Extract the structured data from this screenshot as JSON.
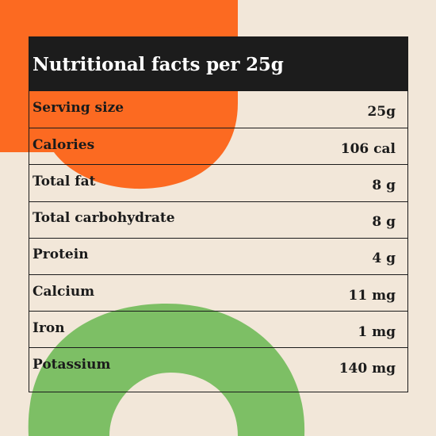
{
  "colors": {
    "background": "#f2e7d9",
    "accent_orange": "#fc6a21",
    "accent_green": "#7dbf65",
    "header_bg": "#1c1c1c"
  },
  "title": "Nutritional facts per 25g",
  "rows": [
    {
      "label": "Serving size",
      "value": "25g"
    },
    {
      "label": "Calories",
      "value": "106 cal"
    },
    {
      "label": "Total fat",
      "value": "8 g"
    },
    {
      "label": "Total carbohydrate",
      "value": "8 g"
    },
    {
      "label": "Protein",
      "value": "4 g"
    },
    {
      "label": "Calcium",
      "value": "11 mg"
    },
    {
      "label": "Iron",
      "value": "1 mg"
    },
    {
      "label": "Potassium",
      "value": "140 mg"
    }
  ]
}
